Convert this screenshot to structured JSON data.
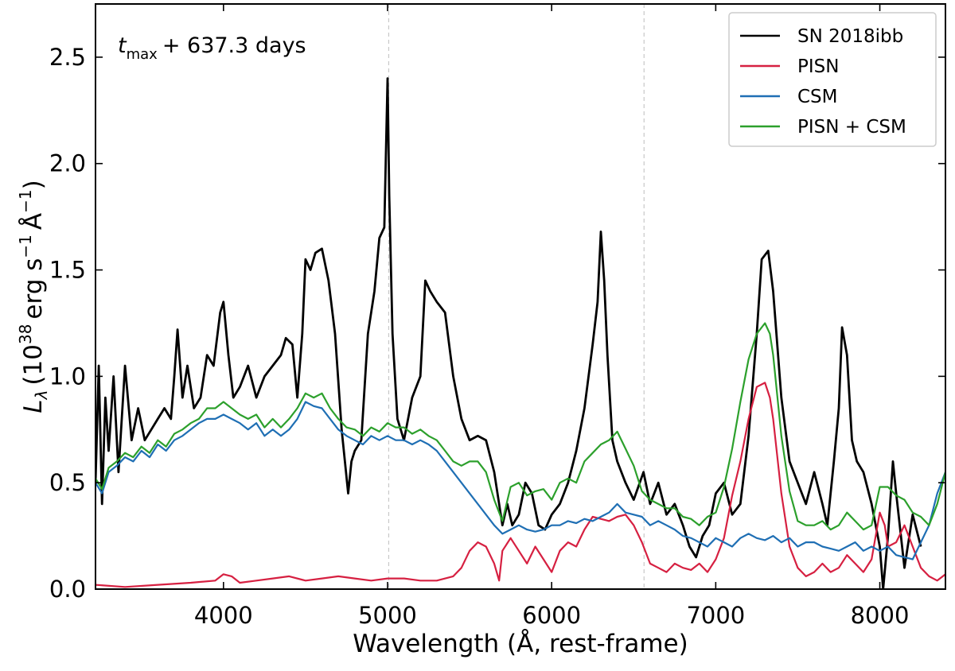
{
  "chart_data": {
    "type": "line",
    "xlabel": "Wavelength (Å, rest-frame)",
    "ylabel": {
      "symbol": "L",
      "symbol_sub": "λ",
      "open": "(10",
      "exp": "38",
      "unit": "erg s",
      "exp2": "−1",
      "unit2": "Å",
      "exp3": "−1",
      "close": ")"
    },
    "annotation": {
      "symbol": "t",
      "sub": "max",
      "rest": "+ 637.3 days"
    },
    "xlim": [
      3220,
      8400
    ],
    "ylim": [
      0,
      2.75
    ],
    "x_ticks": [
      {
        "value": 4000,
        "label": "4000"
      },
      {
        "value": 5000,
        "label": "5000"
      },
      {
        "value": 6000,
        "label": "6000"
      },
      {
        "value": 7000,
        "label": "7000"
      },
      {
        "value": 8000,
        "label": "8000"
      }
    ],
    "y_ticks": [
      {
        "value": 0.0,
        "label": "0.0"
      },
      {
        "value": 0.5,
        "label": "0.5"
      },
      {
        "value": 1.0,
        "label": "1.0"
      },
      {
        "value": 1.5,
        "label": "1.5"
      },
      {
        "value": 2.0,
        "label": "2.0"
      },
      {
        "value": 2.5,
        "label": "2.5"
      }
    ],
    "vlines": [
      5007,
      6563
    ],
    "legend_position": "top-right",
    "grid": false,
    "series": [
      {
        "name": "SN 2018ibb",
        "color": "#000000",
        "x": [
          3220,
          3240,
          3260,
          3280,
          3300,
          3330,
          3360,
          3400,
          3440,
          3480,
          3520,
          3560,
          3600,
          3640,
          3680,
          3700,
          3720,
          3750,
          3780,
          3820,
          3860,
          3900,
          3940,
          3980,
          4000,
          4030,
          4060,
          4100,
          4150,
          4200,
          4250,
          4300,
          4350,
          4380,
          4420,
          4450,
          4480,
          4500,
          4530,
          4560,
          4600,
          4640,
          4680,
          4720,
          4760,
          4780,
          4800,
          4840,
          4880,
          4920,
          4950,
          4980,
          5000,
          5010,
          5030,
          5060,
          5100,
          5150,
          5200,
          5230,
          5260,
          5300,
          5350,
          5400,
          5450,
          5500,
          5550,
          5600,
          5650,
          5700,
          5730,
          5760,
          5800,
          5840,
          5880,
          5920,
          5960,
          6000,
          6050,
          6100,
          6150,
          6200,
          6250,
          6280,
          6300,
          6320,
          6340,
          6370,
          6400,
          6450,
          6500,
          6560,
          6600,
          6650,
          6700,
          6750,
          6800,
          6840,
          6880,
          6920,
          6960,
          7000,
          7050,
          7100,
          7150,
          7200,
          7250,
          7280,
          7300,
          7320,
          7350,
          7400,
          7450,
          7500,
          7550,
          7600,
          7650,
          7680,
          7720,
          7750,
          7770,
          7800,
          7830,
          7860,
          7900,
          7950,
          8000,
          8020,
          8050,
          8080,
          8100,
          8150,
          8200,
          8250
        ],
        "y": [
          0.5,
          1.05,
          0.4,
          0.9,
          0.65,
          1.0,
          0.55,
          1.05,
          0.7,
          0.85,
          0.7,
          0.75,
          0.8,
          0.85,
          0.8,
          1.0,
          1.22,
          0.9,
          1.05,
          0.85,
          0.9,
          1.1,
          1.05,
          1.3,
          1.35,
          1.1,
          0.9,
          0.95,
          1.05,
          0.9,
          1.0,
          1.05,
          1.1,
          1.18,
          1.15,
          0.9,
          1.2,
          1.55,
          1.5,
          1.58,
          1.6,
          1.45,
          1.2,
          0.75,
          0.45,
          0.6,
          0.65,
          0.7,
          1.2,
          1.4,
          1.65,
          1.7,
          2.4,
          1.85,
          1.2,
          0.8,
          0.7,
          0.9,
          1.0,
          1.45,
          1.4,
          1.35,
          1.3,
          1.0,
          0.8,
          0.7,
          0.72,
          0.7,
          0.55,
          0.3,
          0.4,
          0.3,
          0.35,
          0.5,
          0.45,
          0.3,
          0.28,
          0.35,
          0.4,
          0.5,
          0.65,
          0.85,
          1.15,
          1.35,
          1.68,
          1.45,
          1.1,
          0.7,
          0.6,
          0.5,
          0.42,
          0.55,
          0.4,
          0.5,
          0.35,
          0.4,
          0.3,
          0.2,
          0.15,
          0.25,
          0.3,
          0.45,
          0.5,
          0.35,
          0.4,
          0.72,
          1.2,
          1.55,
          1.57,
          1.59,
          1.4,
          0.9,
          0.6,
          0.5,
          0.4,
          0.55,
          0.4,
          0.3,
          0.6,
          0.85,
          1.23,
          1.1,
          0.7,
          0.6,
          0.55,
          0.4,
          0.2,
          0.0,
          0.25,
          0.6,
          0.45,
          0.1,
          0.35,
          0.2
        ]
      },
      {
        "name": "PISN",
        "color": "#d62041",
        "x": [
          3220,
          3400,
          3600,
          3800,
          3950,
          4000,
          4050,
          4100,
          4200,
          4300,
          4400,
          4500,
          4600,
          4700,
          4800,
          4900,
          5000,
          5100,
          5200,
          5300,
          5400,
          5450,
          5500,
          5550,
          5600,
          5650,
          5680,
          5700,
          5750,
          5800,
          5850,
          5900,
          5950,
          6000,
          6050,
          6100,
          6150,
          6200,
          6250,
          6300,
          6350,
          6400,
          6450,
          6500,
          6550,
          6600,
          6650,
          6700,
          6750,
          6800,
          6850,
          6900,
          6950,
          7000,
          7050,
          7100,
          7150,
          7200,
          7250,
          7300,
          7330,
          7350,
          7400,
          7450,
          7500,
          7550,
          7600,
          7650,
          7700,
          7750,
          7800,
          7850,
          7900,
          7950,
          8000,
          8030,
          8050,
          8100,
          8150,
          8200,
          8250,
          8300,
          8350,
          8400
        ],
        "y": [
          0.02,
          0.01,
          0.02,
          0.03,
          0.04,
          0.07,
          0.06,
          0.03,
          0.04,
          0.05,
          0.06,
          0.04,
          0.05,
          0.06,
          0.05,
          0.04,
          0.05,
          0.05,
          0.04,
          0.04,
          0.06,
          0.1,
          0.18,
          0.22,
          0.2,
          0.12,
          0.04,
          0.18,
          0.24,
          0.18,
          0.12,
          0.2,
          0.14,
          0.08,
          0.18,
          0.22,
          0.2,
          0.28,
          0.34,
          0.33,
          0.32,
          0.34,
          0.35,
          0.3,
          0.22,
          0.12,
          0.1,
          0.08,
          0.12,
          0.1,
          0.09,
          0.12,
          0.08,
          0.14,
          0.24,
          0.44,
          0.6,
          0.8,
          0.95,
          0.97,
          0.9,
          0.8,
          0.45,
          0.2,
          0.1,
          0.06,
          0.08,
          0.12,
          0.08,
          0.1,
          0.16,
          0.12,
          0.08,
          0.14,
          0.36,
          0.3,
          0.2,
          0.22,
          0.3,
          0.2,
          0.1,
          0.06,
          0.04,
          0.07
        ]
      },
      {
        "name": "CSM",
        "color": "#1f6fb4",
        "x": [
          3220,
          3260,
          3300,
          3350,
          3400,
          3450,
          3500,
          3550,
          3600,
          3650,
          3700,
          3750,
          3800,
          3850,
          3900,
          3950,
          4000,
          4050,
          4100,
          4150,
          4200,
          4250,
          4300,
          4350,
          4400,
          4450,
          4500,
          4550,
          4600,
          4650,
          4700,
          4750,
          4800,
          4850,
          4900,
          4950,
          5000,
          5050,
          5100,
          5150,
          5200,
          5250,
          5300,
          5350,
          5400,
          5450,
          5500,
          5550,
          5600,
          5650,
          5700,
          5750,
          5800,
          5850,
          5900,
          5950,
          6000,
          6050,
          6100,
          6150,
          6200,
          6250,
          6300,
          6350,
          6400,
          6450,
          6500,
          6550,
          6600,
          6650,
          6700,
          6750,
          6800,
          6850,
          6900,
          6950,
          7000,
          7050,
          7100,
          7150,
          7200,
          7250,
          7300,
          7350,
          7400,
          7450,
          7500,
          7550,
          7600,
          7650,
          7700,
          7750,
          7800,
          7850,
          7900,
          7950,
          8000,
          8050,
          8100,
          8150,
          8200,
          8250,
          8300,
          8350,
          8400
        ],
        "y": [
          0.5,
          0.45,
          0.55,
          0.58,
          0.62,
          0.6,
          0.65,
          0.62,
          0.68,
          0.65,
          0.7,
          0.72,
          0.75,
          0.78,
          0.8,
          0.8,
          0.82,
          0.8,
          0.78,
          0.75,
          0.78,
          0.72,
          0.75,
          0.72,
          0.75,
          0.8,
          0.88,
          0.86,
          0.85,
          0.8,
          0.75,
          0.72,
          0.7,
          0.68,
          0.72,
          0.7,
          0.72,
          0.7,
          0.7,
          0.68,
          0.7,
          0.68,
          0.65,
          0.6,
          0.55,
          0.5,
          0.45,
          0.4,
          0.35,
          0.3,
          0.26,
          0.28,
          0.3,
          0.28,
          0.27,
          0.28,
          0.3,
          0.3,
          0.32,
          0.31,
          0.33,
          0.32,
          0.34,
          0.36,
          0.4,
          0.36,
          0.35,
          0.34,
          0.3,
          0.32,
          0.3,
          0.28,
          0.25,
          0.24,
          0.22,
          0.2,
          0.24,
          0.22,
          0.2,
          0.24,
          0.26,
          0.24,
          0.23,
          0.25,
          0.22,
          0.24,
          0.2,
          0.22,
          0.22,
          0.2,
          0.19,
          0.18,
          0.2,
          0.22,
          0.18,
          0.2,
          0.18,
          0.2,
          0.16,
          0.15,
          0.14,
          0.22,
          0.3,
          0.45,
          0.55
        ]
      },
      {
        "name": "PISN + CSM",
        "color": "#2ca02c",
        "x": [
          3220,
          3260,
          3300,
          3350,
          3400,
          3450,
          3500,
          3550,
          3600,
          3650,
          3700,
          3750,
          3800,
          3850,
          3900,
          3950,
          4000,
          4050,
          4100,
          4150,
          4200,
          4250,
          4300,
          4350,
          4400,
          4450,
          4500,
          4550,
          4600,
          4650,
          4700,
          4750,
          4800,
          4850,
          4900,
          4950,
          5000,
          5050,
          5100,
          5150,
          5200,
          5250,
          5300,
          5350,
          5400,
          5450,
          5500,
          5550,
          5600,
          5650,
          5700,
          5750,
          5800,
          5850,
          5900,
          5950,
          6000,
          6050,
          6100,
          6150,
          6200,
          6250,
          6300,
          6350,
          6400,
          6450,
          6500,
          6550,
          6600,
          6650,
          6700,
          6750,
          6800,
          6850,
          6900,
          6950,
          7000,
          7050,
          7100,
          7150,
          7200,
          7250,
          7300,
          7330,
          7350,
          7400,
          7450,
          7500,
          7550,
          7600,
          7650,
          7700,
          7750,
          7800,
          7850,
          7900,
          7950,
          8000,
          8050,
          8100,
          8150,
          8200,
          8250,
          8300,
          8350,
          8400
        ],
        "y": [
          0.52,
          0.47,
          0.57,
          0.6,
          0.64,
          0.62,
          0.67,
          0.64,
          0.7,
          0.67,
          0.73,
          0.75,
          0.78,
          0.8,
          0.85,
          0.85,
          0.88,
          0.85,
          0.82,
          0.8,
          0.82,
          0.76,
          0.8,
          0.76,
          0.8,
          0.85,
          0.92,
          0.9,
          0.92,
          0.85,
          0.8,
          0.76,
          0.75,
          0.72,
          0.76,
          0.74,
          0.78,
          0.76,
          0.76,
          0.73,
          0.75,
          0.72,
          0.7,
          0.65,
          0.6,
          0.58,
          0.6,
          0.6,
          0.55,
          0.42,
          0.32,
          0.48,
          0.5,
          0.44,
          0.46,
          0.47,
          0.42,
          0.5,
          0.52,
          0.5,
          0.6,
          0.64,
          0.68,
          0.7,
          0.74,
          0.66,
          0.58,
          0.46,
          0.42,
          0.4,
          0.38,
          0.38,
          0.34,
          0.33,
          0.3,
          0.34,
          0.36,
          0.48,
          0.66,
          0.88,
          1.08,
          1.2,
          1.25,
          1.2,
          1.1,
          0.72,
          0.46,
          0.32,
          0.3,
          0.3,
          0.32,
          0.28,
          0.3,
          0.36,
          0.32,
          0.28,
          0.3,
          0.48,
          0.48,
          0.44,
          0.42,
          0.36,
          0.34,
          0.3,
          0.4,
          0.55
        ]
      }
    ]
  }
}
